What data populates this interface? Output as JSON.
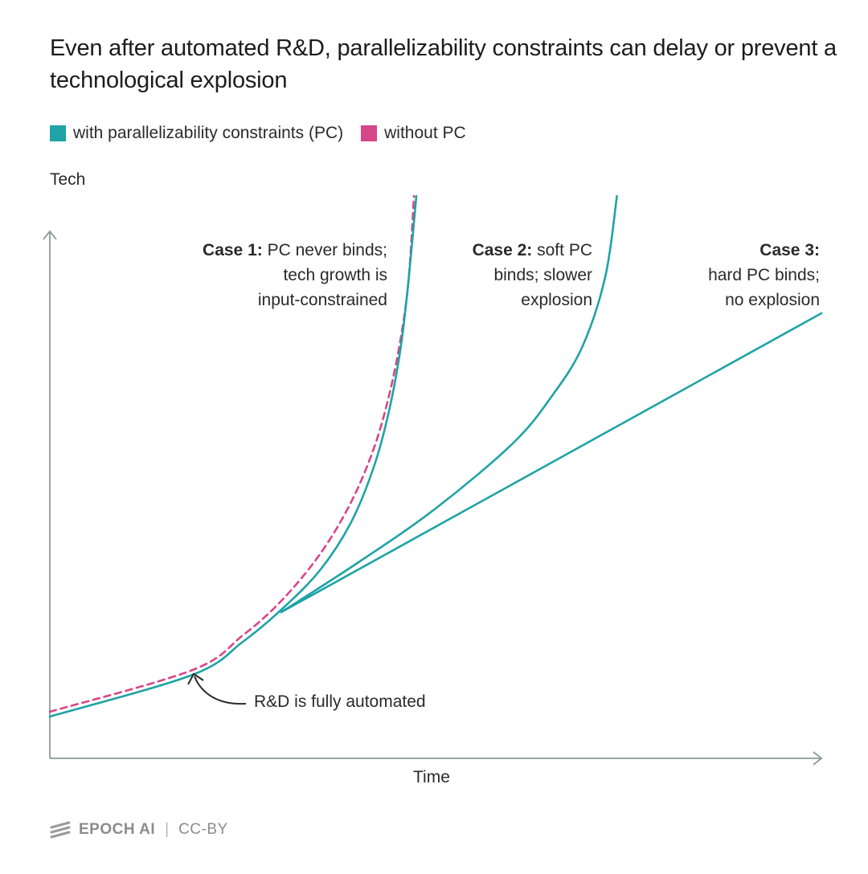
{
  "title": "Even after automated R&D, parallelizability constraints can delay or prevent a technological explosion",
  "colors": {
    "with_pc": "#1fa3a6",
    "without_pc": "#d8468a",
    "axis": "#8a9a99",
    "text": "#2a2a2a",
    "footer": "#8c8c8c"
  },
  "legend": [
    {
      "label": "with parallelizability constraints (PC)",
      "color": "#1fa3a6"
    },
    {
      "label": "without PC",
      "color": "#d8468a"
    }
  ],
  "cases": {
    "case1": {
      "bold": "Case 1:",
      "line1": " PC never binds;",
      "line2": "tech growth is",
      "line3": "input-constrained"
    },
    "case2": {
      "bold": "Case 2:",
      "line1": " soft PC",
      "line2": "binds; slower",
      "line3": "explosion"
    },
    "case3": {
      "bold": "Case 3:",
      "line1": "",
      "line2": "hard PC binds;",
      "line3": "no explosion"
    }
  },
  "annotation": "R&D is fully automated",
  "footer": {
    "logo_icon": "epoch-stripes-icon",
    "brand": "EPOCH AI",
    "separator": "|",
    "license": "CC-BY"
  },
  "chart_data": {
    "type": "line",
    "xlabel": "Time",
    "ylabel": "Tech",
    "xlim": [
      0,
      10
    ],
    "ylim": [
      0,
      7
    ],
    "grid": false,
    "legend_position": "top-left",
    "axis_ticks": "none",
    "automation_time": 1.85,
    "series": [
      {
        "name": "without PC",
        "color": "#d8468a",
        "style": "dashed",
        "x": [
          0,
          1.85,
          2.5,
          3.0,
          3.5,
          3.9,
          4.2,
          4.4,
          4.55,
          4.65,
          4.72
        ],
        "y": [
          0.58,
          1.1,
          1.53,
          1.96,
          2.54,
          3.18,
          3.86,
          4.53,
          5.24,
          5.96,
          7.0
        ]
      },
      {
        "name": "Case 1",
        "color": "#1fa3a6",
        "style": "solid",
        "x": [
          0,
          1.85,
          2.5,
          3.0,
          3.5,
          3.9,
          4.2,
          4.4,
          4.55,
          4.65,
          4.75
        ],
        "y": [
          0.52,
          1.04,
          1.45,
          1.85,
          2.34,
          2.93,
          3.63,
          4.34,
          5.13,
          5.96,
          7.0
        ]
      },
      {
        "name": "Case 2",
        "color": "#1fa3a6",
        "style": "solid",
        "x": [
          3.0,
          4.0,
          5.0,
          6.0,
          6.5,
          6.9,
          7.2,
          7.35
        ],
        "y": [
          1.82,
          2.44,
          3.11,
          3.92,
          4.5,
          5.12,
          6.0,
          7.0
        ]
      },
      {
        "name": "Case 3",
        "color": "#1fa3a6",
        "style": "solid",
        "x": [
          3.0,
          10.0
        ],
        "y": [
          1.82,
          5.54
        ]
      }
    ]
  }
}
